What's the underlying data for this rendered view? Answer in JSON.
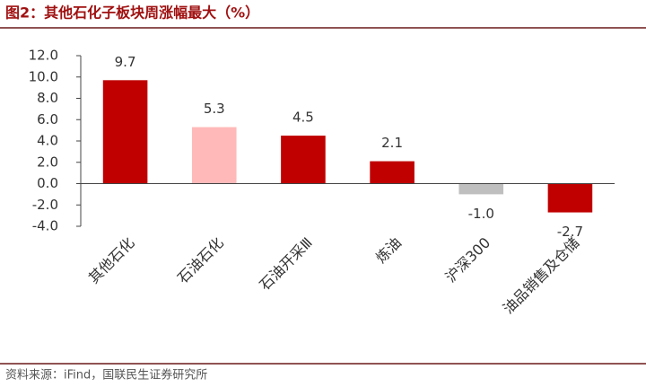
{
  "chart_data": {
    "type": "bar",
    "title": "图2：其他石化子板块周涨幅最大（%）",
    "source": "资料来源：iFind，国联民生证券研究所",
    "categories": [
      "其他石化",
      "石油石化",
      "石油开采Ⅲ",
      "炼油",
      "沪深300",
      "油品销售及仓储"
    ],
    "values": [
      9.7,
      5.3,
      4.5,
      2.1,
      -1.0,
      -2.7
    ],
    "value_labels": [
      "9.7",
      "5.3",
      "4.5",
      "2.1",
      "-1.0",
      "-2.7"
    ],
    "colors": [
      "#c00000",
      "#ffb9b9",
      "#c00000",
      "#c00000",
      "#bfbfbf",
      "#c00000"
    ],
    "ylim": [
      -4,
      12
    ],
    "yticks": [
      {
        "value": -4,
        "label": "-4.0"
      },
      {
        "value": -2,
        "label": "-2.0"
      },
      {
        "value": 0,
        "label": "0.0"
      },
      {
        "value": 2,
        "label": "2.0"
      },
      {
        "value": 4,
        "label": "4.0"
      },
      {
        "value": 6,
        "label": "6.0"
      },
      {
        "value": 8,
        "label": "8.0"
      },
      {
        "value": 10,
        "label": "10.0"
      },
      {
        "value": 12,
        "label": "12.0"
      }
    ],
    "grid": false
  }
}
